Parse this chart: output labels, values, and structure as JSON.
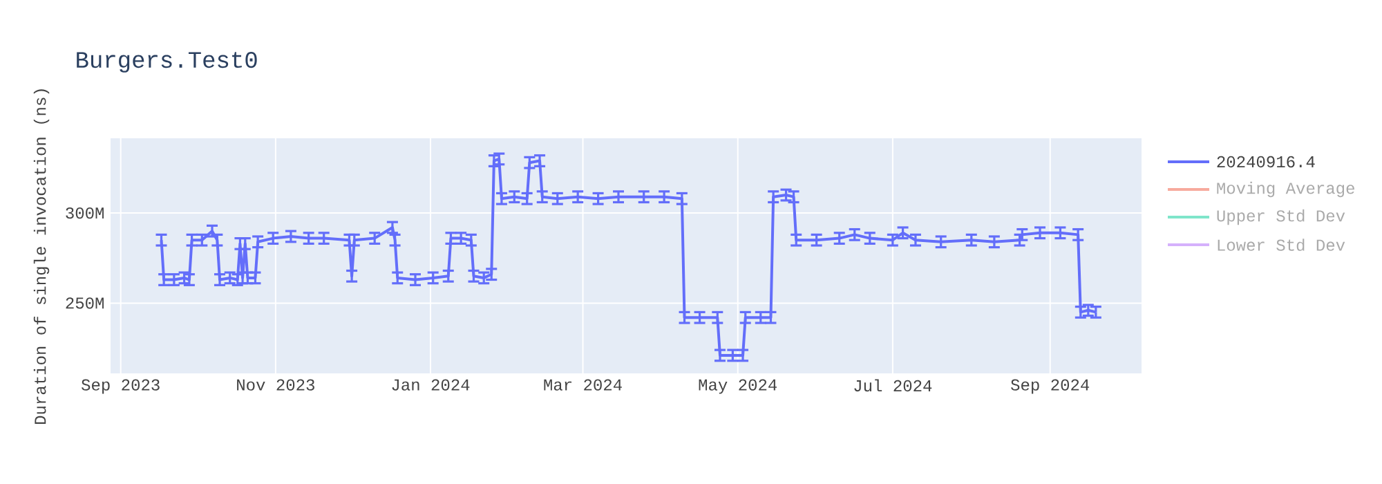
{
  "chart_data": {
    "type": "line",
    "title": "Burgers.Test0",
    "ylabel": "Duration of single invocation (ns)",
    "x": [
      "2023-09-17",
      "2023-09-18",
      "2023-09-22",
      "2023-09-26",
      "2023-09-28",
      "2023-09-29",
      "2023-10-03",
      "2023-10-07",
      "2023-10-09",
      "2023-10-10",
      "2023-10-14",
      "2023-10-17",
      "2023-10-18",
      "2023-10-19",
      "2023-10-20",
      "2023-10-21",
      "2023-10-24",
      "2023-10-25",
      "2023-10-31",
      "2023-11-07",
      "2023-11-14",
      "2023-11-20",
      "2023-11-30",
      "2023-12-01",
      "2023-12-02",
      "2023-12-10",
      "2023-12-17",
      "2023-12-18",
      "2023-12-19",
      "2023-12-26",
      "2024-01-02",
      "2024-01-08",
      "2024-01-09",
      "2024-01-13",
      "2024-01-17",
      "2024-01-18",
      "2024-01-22",
      "2024-01-25",
      "2024-01-26",
      "2024-01-28",
      "2024-01-29",
      "2024-02-03",
      "2024-02-08",
      "2024-02-09",
      "2024-02-13",
      "2024-02-14",
      "2024-02-20",
      "2024-02-28",
      "2024-03-07",
      "2024-03-15",
      "2024-03-25",
      "2024-04-02",
      "2024-04-09",
      "2024-04-10",
      "2024-04-16",
      "2024-04-23",
      "2024-04-24",
      "2024-04-29",
      "2024-05-03",
      "2024-05-04",
      "2024-05-10",
      "2024-05-14",
      "2024-05-15",
      "2024-05-20",
      "2024-05-23",
      "2024-05-24",
      "2024-06-01",
      "2024-06-10",
      "2024-06-16",
      "2024-06-22",
      "2024-07-01",
      "2024-07-05",
      "2024-07-10",
      "2024-07-20",
      "2024-08-01",
      "2024-08-10",
      "2024-08-20",
      "2024-08-21",
      "2024-08-28",
      "2024-09-05",
      "2024-09-12",
      "2024-09-13",
      "2024-09-16",
      "2024-09-19"
    ],
    "series": [
      {
        "name": "20240916.4",
        "color": "#636efa",
        "values": [
          285000000,
          263000000,
          263000000,
          264000000,
          263000000,
          285000000,
          285000000,
          290000000,
          285000000,
          263000000,
          264000000,
          263000000,
          283000000,
          264000000,
          283000000,
          264000000,
          264000000,
          284000000,
          286000000,
          287000000,
          286000000,
          286000000,
          285000000,
          265000000,
          285000000,
          286000000,
          292000000,
          285000000,
          264000000,
          263000000,
          264000000,
          265000000,
          286000000,
          286000000,
          285000000,
          265000000,
          264000000,
          266000000,
          329000000,
          330000000,
          308000000,
          309000000,
          308000000,
          328000000,
          329000000,
          309000000,
          308000000,
          309000000,
          308000000,
          309000000,
          309000000,
          309000000,
          308000000,
          242000000,
          242000000,
          242000000,
          221000000,
          221000000,
          221000000,
          242000000,
          242000000,
          242000000,
          309000000,
          310000000,
          309000000,
          285000000,
          285000000,
          286000000,
          288000000,
          286000000,
          285000000,
          289000000,
          285000000,
          284000000,
          285000000,
          284000000,
          285000000,
          288000000,
          289000000,
          289000000,
          288000000,
          245000000,
          246000000,
          245000000
        ],
        "errors": [
          3000000,
          3000000,
          3000000,
          3000000,
          3000000,
          3000000,
          3000000,
          3000000,
          3000000,
          3000000,
          3000000,
          3000000,
          3000000,
          3000000,
          3000000,
          3000000,
          3000000,
          3000000,
          3000000,
          3000000,
          3000000,
          3000000,
          3000000,
          3000000,
          3000000,
          3000000,
          3000000,
          3000000,
          3000000,
          3000000,
          3000000,
          3000000,
          3000000,
          3000000,
          3000000,
          3000000,
          3000000,
          3000000,
          3000000,
          3000000,
          3000000,
          3000000,
          3000000,
          3000000,
          3000000,
          3000000,
          3000000,
          3000000,
          3000000,
          3000000,
          3000000,
          3000000,
          3000000,
          3000000,
          3000000,
          3000000,
          3000000,
          3000000,
          3000000,
          3000000,
          3000000,
          3000000,
          3000000,
          3000000,
          3000000,
          3000000,
          3000000,
          3000000,
          3000000,
          3000000,
          3000000,
          3000000,
          3000000,
          3000000,
          3000000,
          3000000,
          3000000,
          3000000,
          3000000,
          3000000,
          3000000,
          3000000,
          3000000,
          3000000
        ]
      },
      {
        "name": "Moving Average",
        "color": "#f7aa9d",
        "values": [
          null,
          null,
          null,
          null,
          null,
          null,
          null,
          null,
          null,
          null,
          null,
          null,
          null,
          null,
          null,
          null,
          null,
          null,
          null,
          null,
          null,
          null,
          null,
          null,
          null,
          null,
          null,
          null,
          null,
          null,
          null,
          null,
          null,
          null,
          null,
          null,
          null,
          null,
          null,
          null,
          null,
          null,
          null,
          null,
          null,
          null,
          null,
          null,
          null,
          null,
          null,
          null,
          null,
          null,
          null,
          null,
          null,
          null,
          null,
          null,
          null,
          null,
          null,
          null,
          null,
          null,
          null,
          null,
          null,
          null,
          null,
          null,
          null,
          null,
          null,
          null,
          null,
          null,
          null,
          null,
          null,
          null,
          null,
          null
        ]
      },
      {
        "name": "Upper Std Dev",
        "color": "#7fe5ca",
        "values": [
          null,
          null,
          null,
          null,
          null,
          null,
          null,
          null,
          null,
          null,
          null,
          null,
          null,
          null,
          null,
          null,
          null,
          null,
          null,
          null,
          null,
          null,
          null,
          null,
          null,
          null,
          null,
          null,
          null,
          null,
          null,
          null,
          null,
          null,
          null,
          null,
          null,
          null,
          null,
          null,
          null,
          null,
          null,
          null,
          null,
          null,
          null,
          null,
          null,
          null,
          null,
          null,
          null,
          null,
          null,
          null,
          null,
          null,
          null,
          null,
          null,
          null,
          null,
          null,
          null,
          null,
          null,
          null,
          null,
          null,
          null,
          null,
          null,
          null,
          null,
          null,
          null,
          null,
          null,
          null,
          null,
          null,
          null,
          null
        ]
      },
      {
        "name": "Lower Std Dev",
        "color": "#d5b1fc",
        "values": [
          null,
          null,
          null,
          null,
          null,
          null,
          null,
          null,
          null,
          null,
          null,
          null,
          null,
          null,
          null,
          null,
          null,
          null,
          null,
          null,
          null,
          null,
          null,
          null,
          null,
          null,
          null,
          null,
          null,
          null,
          null,
          null,
          null,
          null,
          null,
          null,
          null,
          null,
          null,
          null,
          null,
          null,
          null,
          null,
          null,
          null,
          null,
          null,
          null,
          null,
          null,
          null,
          null,
          null,
          null,
          null,
          null,
          null,
          null,
          null,
          null,
          null,
          null,
          null,
          null,
          null,
          null,
          null,
          null,
          null,
          null,
          null,
          null,
          null,
          null,
          null,
          null,
          null,
          null,
          null,
          null,
          null,
          null,
          null
        ]
      }
    ],
    "xlim": [
      "2023-08-28",
      "2024-10-07"
    ],
    "xticks": [
      {
        "value": "2023-09-01",
        "label": "Sep 2023"
      },
      {
        "value": "2023-11-01",
        "label": "Nov 2023"
      },
      {
        "value": "2024-01-01",
        "label": "Jan 2024"
      },
      {
        "value": "2024-03-01",
        "label": "Mar 2024"
      },
      {
        "value": "2024-05-01",
        "label": "May 2024"
      },
      {
        "value": "2024-07-01",
        "label": "Jul 2024"
      },
      {
        "value": "2024-09-01",
        "label": "Sep 2024"
      }
    ],
    "ylim": [
      211000000,
      341500000
    ],
    "yticks": [
      {
        "value": 250000000,
        "label": "250M"
      },
      {
        "value": 300000000,
        "label": "300M"
      }
    ],
    "grid": true,
    "legend": "right",
    "marker": "none",
    "line_style": "solid"
  }
}
